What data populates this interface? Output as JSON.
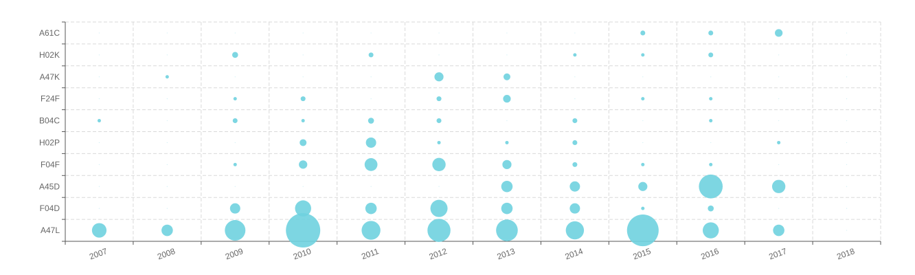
{
  "chart_data": {
    "type": "scatter",
    "subtype": "bubble-matrix",
    "title": "",
    "xlabel": "",
    "ylabel": "",
    "x": [
      "2007",
      "2008",
      "2009",
      "2010",
      "2011",
      "2012",
      "2013",
      "2014",
      "2015",
      "2016",
      "2017",
      "2018"
    ],
    "y": [
      "A47L",
      "F04D",
      "A45D",
      "F04F",
      "H02P",
      "B04C",
      "F24F",
      "A47K",
      "H02K",
      "A61C"
    ],
    "size_unit": "relative (largest bubble = 1.0)",
    "grid": true,
    "legend": "none",
    "color": "#6fd1df",
    "series": [
      {
        "values": [
          {
            "x": "2007",
            "y": "A47L",
            "size": 0.18
          },
          {
            "x": "2008",
            "y": "A47L",
            "size": 0.11
          },
          {
            "x": "2009",
            "y": "A47L",
            "size": 0.36
          },
          {
            "x": "2010",
            "y": "A47L",
            "size": 1.0
          },
          {
            "x": "2011",
            "y": "A47L",
            "size": 0.3
          },
          {
            "x": "2012",
            "y": "A47L",
            "size": 0.45
          },
          {
            "x": "2013",
            "y": "A47L",
            "size": 0.4
          },
          {
            "x": "2014",
            "y": "A47L",
            "size": 0.28
          },
          {
            "x": "2015",
            "y": "A47L",
            "size": 0.85
          },
          {
            "x": "2016",
            "y": "A47L",
            "size": 0.22
          },
          {
            "x": "2017",
            "y": "A47L",
            "size": 0.11
          },
          {
            "x": "2018",
            "y": "A47L",
            "size": 0.0
          },
          {
            "x": "2007",
            "y": "F04D",
            "size": 0.0
          },
          {
            "x": "2008",
            "y": "F04D",
            "size": 0.0
          },
          {
            "x": "2009",
            "y": "F04D",
            "size": 0.09
          },
          {
            "x": "2010",
            "y": "F04D",
            "size": 0.22
          },
          {
            "x": "2011",
            "y": "F04D",
            "size": 0.11
          },
          {
            "x": "2012",
            "y": "F04D",
            "size": 0.25
          },
          {
            "x": "2013",
            "y": "F04D",
            "size": 0.11
          },
          {
            "x": "2014",
            "y": "F04D",
            "size": 0.09
          },
          {
            "x": "2015",
            "y": "F04D",
            "size": 0.01
          },
          {
            "x": "2016",
            "y": "F04D",
            "size": 0.03
          },
          {
            "x": "2017",
            "y": "F04D",
            "size": 0.0
          },
          {
            "x": "2018",
            "y": "F04D",
            "size": 0.0
          },
          {
            "x": "2007",
            "y": "A45D",
            "size": 0.0
          },
          {
            "x": "2008",
            "y": "A45D",
            "size": 0.0
          },
          {
            "x": "2009",
            "y": "A45D",
            "size": 0.0
          },
          {
            "x": "2010",
            "y": "A45D",
            "size": 0.0
          },
          {
            "x": "2011",
            "y": "A45D",
            "size": 0.0
          },
          {
            "x": "2012",
            "y": "A45D",
            "size": 0.0
          },
          {
            "x": "2013",
            "y": "A45D",
            "size": 0.11
          },
          {
            "x": "2014",
            "y": "A45D",
            "size": 0.09
          },
          {
            "x": "2015",
            "y": "A45D",
            "size": 0.07
          },
          {
            "x": "2016",
            "y": "A45D",
            "size": 0.48
          },
          {
            "x": "2017",
            "y": "A45D",
            "size": 0.15
          },
          {
            "x": "2018",
            "y": "A45D",
            "size": 0.0
          },
          {
            "x": "2007",
            "y": "F04F",
            "size": 0.0
          },
          {
            "x": "2008",
            "y": "F04F",
            "size": 0.0
          },
          {
            "x": "2009",
            "y": "F04F",
            "size": 0.01
          },
          {
            "x": "2010",
            "y": "F04F",
            "size": 0.06
          },
          {
            "x": "2011",
            "y": "F04F",
            "size": 0.14
          },
          {
            "x": "2012",
            "y": "F04F",
            "size": 0.15
          },
          {
            "x": "2013",
            "y": "F04F",
            "size": 0.07
          },
          {
            "x": "2014",
            "y": "F04F",
            "size": 0.02
          },
          {
            "x": "2015",
            "y": "F04F",
            "size": 0.01
          },
          {
            "x": "2016",
            "y": "F04F",
            "size": 0.01
          },
          {
            "x": "2017",
            "y": "F04F",
            "size": 0.0
          },
          {
            "x": "2018",
            "y": "F04F",
            "size": 0.0
          },
          {
            "x": "2007",
            "y": "H02P",
            "size": 0.0
          },
          {
            "x": "2008",
            "y": "H02P",
            "size": 0.0
          },
          {
            "x": "2009",
            "y": "H02P",
            "size": 0.0
          },
          {
            "x": "2010",
            "y": "H02P",
            "size": 0.04
          },
          {
            "x": "2011",
            "y": "H02P",
            "size": 0.09
          },
          {
            "x": "2012",
            "y": "H02P",
            "size": 0.01
          },
          {
            "x": "2013",
            "y": "H02P",
            "size": 0.01
          },
          {
            "x": "2014",
            "y": "H02P",
            "size": 0.02
          },
          {
            "x": "2015",
            "y": "H02P",
            "size": 0.0
          },
          {
            "x": "2016",
            "y": "H02P",
            "size": 0.0
          },
          {
            "x": "2017",
            "y": "H02P",
            "size": 0.01
          },
          {
            "x": "2018",
            "y": "H02P",
            "size": 0.0
          },
          {
            "x": "2007",
            "y": "B04C",
            "size": 0.01
          },
          {
            "x": "2008",
            "y": "B04C",
            "size": 0.0
          },
          {
            "x": "2009",
            "y": "B04C",
            "size": 0.02
          },
          {
            "x": "2010",
            "y": "B04C",
            "size": 0.01
          },
          {
            "x": "2011",
            "y": "B04C",
            "size": 0.03
          },
          {
            "x": "2012",
            "y": "B04C",
            "size": 0.02
          },
          {
            "x": "2013",
            "y": "B04C",
            "size": 0.0
          },
          {
            "x": "2014",
            "y": "B04C",
            "size": 0.02
          },
          {
            "x": "2015",
            "y": "B04C",
            "size": 0.0
          },
          {
            "x": "2016",
            "y": "B04C",
            "size": 0.01
          },
          {
            "x": "2017",
            "y": "B04C",
            "size": 0.0
          },
          {
            "x": "2018",
            "y": "B04C",
            "size": 0.0
          },
          {
            "x": "2007",
            "y": "F24F",
            "size": 0.0
          },
          {
            "x": "2008",
            "y": "F24F",
            "size": 0.0
          },
          {
            "x": "2009",
            "y": "F24F",
            "size": 0.01
          },
          {
            "x": "2010",
            "y": "F24F",
            "size": 0.02
          },
          {
            "x": "2011",
            "y": "F24F",
            "size": 0.0
          },
          {
            "x": "2012",
            "y": "F24F",
            "size": 0.02
          },
          {
            "x": "2013",
            "y": "F24F",
            "size": 0.05
          },
          {
            "x": "2014",
            "y": "F24F",
            "size": 0.0
          },
          {
            "x": "2015",
            "y": "F24F",
            "size": 0.01
          },
          {
            "x": "2016",
            "y": "F24F",
            "size": 0.01
          },
          {
            "x": "2017",
            "y": "F24F",
            "size": 0.0
          },
          {
            "x": "2018",
            "y": "F24F",
            "size": 0.0
          },
          {
            "x": "2007",
            "y": "A47K",
            "size": 0.0
          },
          {
            "x": "2008",
            "y": "A47K",
            "size": 0.01
          },
          {
            "x": "2009",
            "y": "A47K",
            "size": 0.0
          },
          {
            "x": "2010",
            "y": "A47K",
            "size": 0.0
          },
          {
            "x": "2011",
            "y": "A47K",
            "size": 0.0
          },
          {
            "x": "2012",
            "y": "A47K",
            "size": 0.07
          },
          {
            "x": "2013",
            "y": "A47K",
            "size": 0.04
          },
          {
            "x": "2014",
            "y": "A47K",
            "size": 0.0
          },
          {
            "x": "2015",
            "y": "A47K",
            "size": 0.0
          },
          {
            "x": "2016",
            "y": "A47K",
            "size": 0.0
          },
          {
            "x": "2017",
            "y": "A47K",
            "size": 0.0
          },
          {
            "x": "2018",
            "y": "A47K",
            "size": 0.0
          },
          {
            "x": "2007",
            "y": "H02K",
            "size": 0.0
          },
          {
            "x": "2008",
            "y": "H02K",
            "size": 0.0
          },
          {
            "x": "2009",
            "y": "H02K",
            "size": 0.03
          },
          {
            "x": "2010",
            "y": "H02K",
            "size": 0.0
          },
          {
            "x": "2011",
            "y": "H02K",
            "size": 0.02
          },
          {
            "x": "2012",
            "y": "H02K",
            "size": 0.0
          },
          {
            "x": "2013",
            "y": "H02K",
            "size": 0.0
          },
          {
            "x": "2014",
            "y": "H02K",
            "size": 0.01
          },
          {
            "x": "2015",
            "y": "H02K",
            "size": 0.01
          },
          {
            "x": "2016",
            "y": "H02K",
            "size": 0.02
          },
          {
            "x": "2017",
            "y": "H02K",
            "size": 0.0
          },
          {
            "x": "2018",
            "y": "H02K",
            "size": 0.0
          },
          {
            "x": "2007",
            "y": "A61C",
            "size": 0.0
          },
          {
            "x": "2008",
            "y": "A61C",
            "size": 0.0
          },
          {
            "x": "2009",
            "y": "A61C",
            "size": 0.0
          },
          {
            "x": "2010",
            "y": "A61C",
            "size": 0.0
          },
          {
            "x": "2011",
            "y": "A61C",
            "size": 0.0
          },
          {
            "x": "2012",
            "y": "A61C",
            "size": 0.0
          },
          {
            "x": "2013",
            "y": "A61C",
            "size": 0.0
          },
          {
            "x": "2014",
            "y": "A61C",
            "size": 0.0
          },
          {
            "x": "2015",
            "y": "A61C",
            "size": 0.02
          },
          {
            "x": "2016",
            "y": "A61C",
            "size": 0.02
          },
          {
            "x": "2017",
            "y": "A61C",
            "size": 0.05
          },
          {
            "x": "2018",
            "y": "A61C",
            "size": 0.0
          }
        ]
      }
    ]
  }
}
